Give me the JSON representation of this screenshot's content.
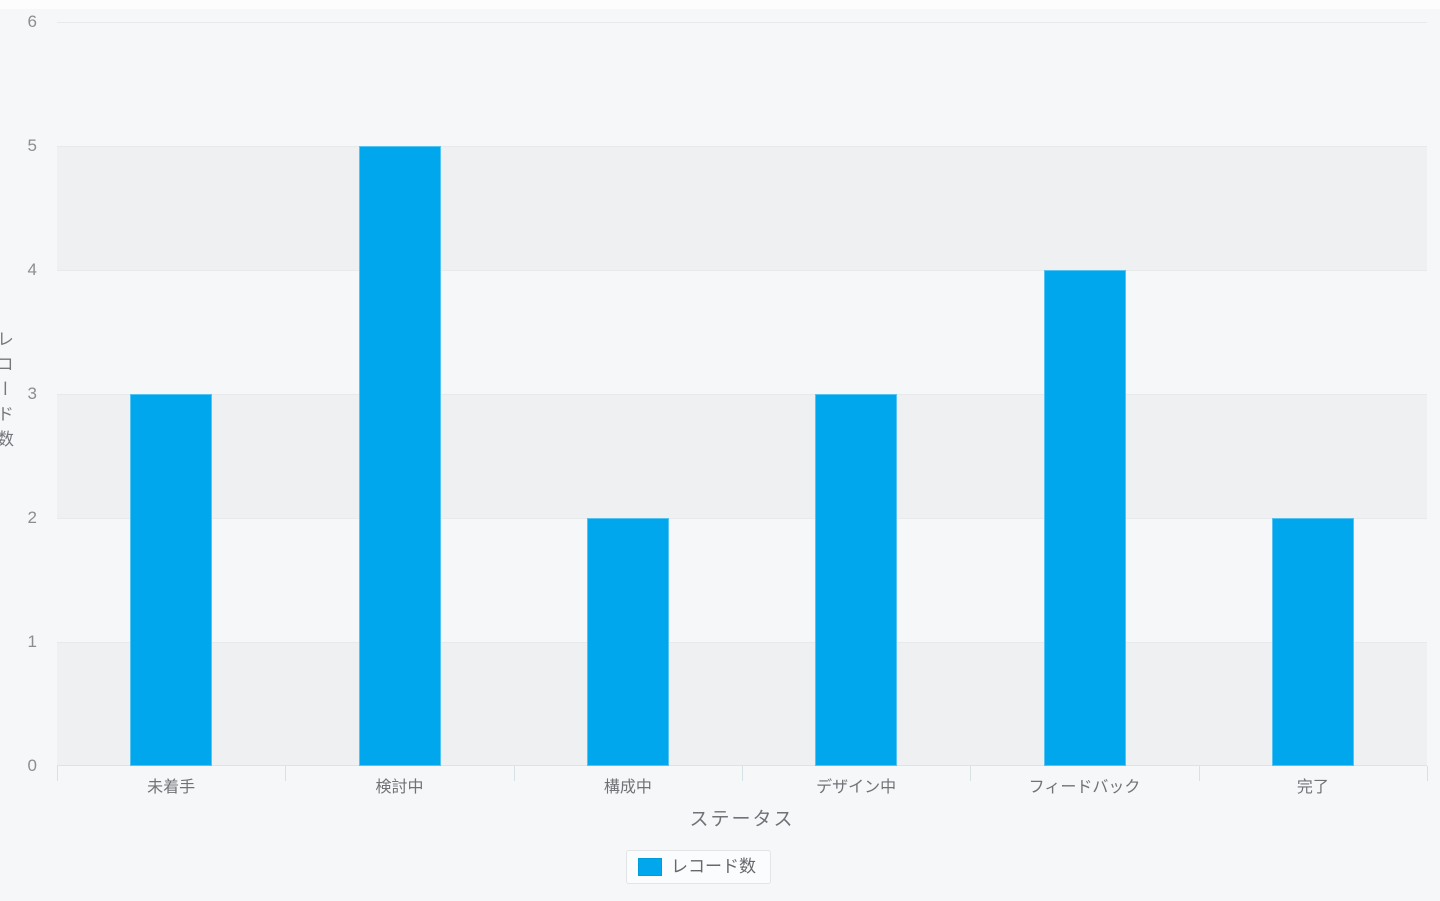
{
  "chart_data": {
    "type": "bar",
    "title": "",
    "categories": [
      "未着手",
      "検討中",
      "構成中",
      "デザイン中",
      "フィードバック",
      "完了"
    ],
    "series": [
      {
        "name": "レコード数",
        "values": [
          3,
          5,
          2,
          3,
          4,
          2
        ]
      }
    ],
    "xlabel": "ステータス",
    "ylabel": "レコード数",
    "ylim": [
      0,
      6
    ],
    "yticks": [
      0,
      1,
      2,
      3,
      4,
      5,
      6
    ],
    "grid": true,
    "stripes": "alternating horizontal bands",
    "legend_position": "bottom-center",
    "colors": {
      "bar": "#00a7ec",
      "background": "#f6f7f9",
      "stripe": "#eff0f2",
      "gridline": "#e8e9eb",
      "baseline": "#dfe3e6",
      "axis_tick": "#d5e3e5"
    }
  }
}
